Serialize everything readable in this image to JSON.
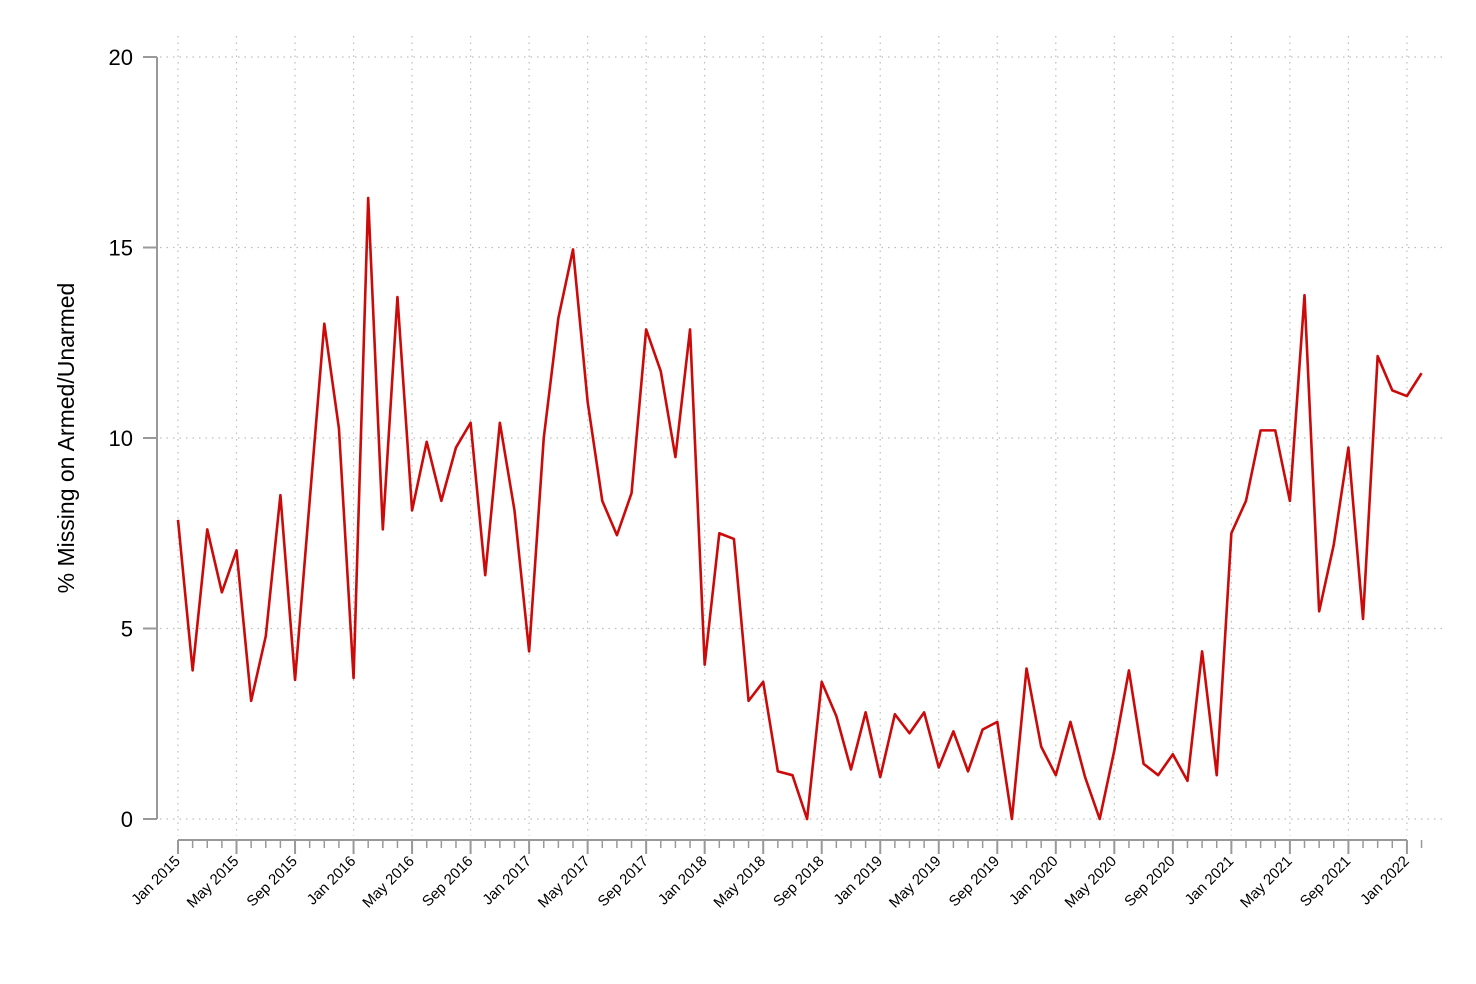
{
  "chart_data": {
    "type": "line",
    "title": "",
    "xlabel": "",
    "ylabel": "% Missing on Armed/Unarmed",
    "ylim": [
      0,
      20
    ],
    "yticks": [
      0,
      5,
      10,
      15,
      20
    ],
    "grid": true,
    "x_start": "Jan 2015",
    "x_tick_labels": [
      "Jan 2015",
      "May 2015",
      "Sep 2015",
      "Jan 2016",
      "May 2016",
      "Sep 2016",
      "Jan 2017",
      "May 2017",
      "Sep 2017",
      "Jan 2018",
      "May 2018",
      "Sep 2018",
      "Jan 2019",
      "May 2019",
      "Sep 2019",
      "Jan 2020",
      "May 2020",
      "Sep 2020",
      "Jan 2021",
      "May 2021",
      "Sep 2021",
      "Jan 2022"
    ],
    "line_color": "#cc0a0a",
    "series": [
      {
        "values": [
          7.85,
          3.9,
          7.6,
          5.95,
          7.05,
          3.1,
          4.8,
          8.5,
          3.65,
          8.35,
          13.0,
          10.25,
          3.7,
          16.3,
          7.6,
          13.7,
          8.1,
          9.9,
          8.35,
          9.75,
          10.4,
          6.4,
          10.4,
          8.1,
          4.4,
          10.0,
          13.15,
          14.95,
          10.95,
          8.35,
          7.45,
          8.55,
          12.85,
          11.75,
          9.5,
          12.85,
          4.05,
          7.5,
          7.35,
          3.1,
          3.6,
          1.25,
          1.15,
          0.0,
          3.6,
          2.7,
          1.3,
          2.8,
          1.1,
          2.75,
          2.25,
          2.8,
          1.35,
          2.3,
          1.25,
          2.35,
          2.55,
          0.0,
          3.95,
          1.9,
          1.15,
          2.55,
          1.1,
          0.0,
          1.8,
          3.9,
          1.45,
          1.15,
          1.7,
          1.0,
          4.4,
          1.15,
          7.5,
          8.35,
          10.2,
          10.2,
          8.35,
          13.75,
          5.45,
          7.2,
          9.75,
          5.25,
          12.15,
          11.25,
          11.1,
          11.7
        ]
      }
    ]
  }
}
